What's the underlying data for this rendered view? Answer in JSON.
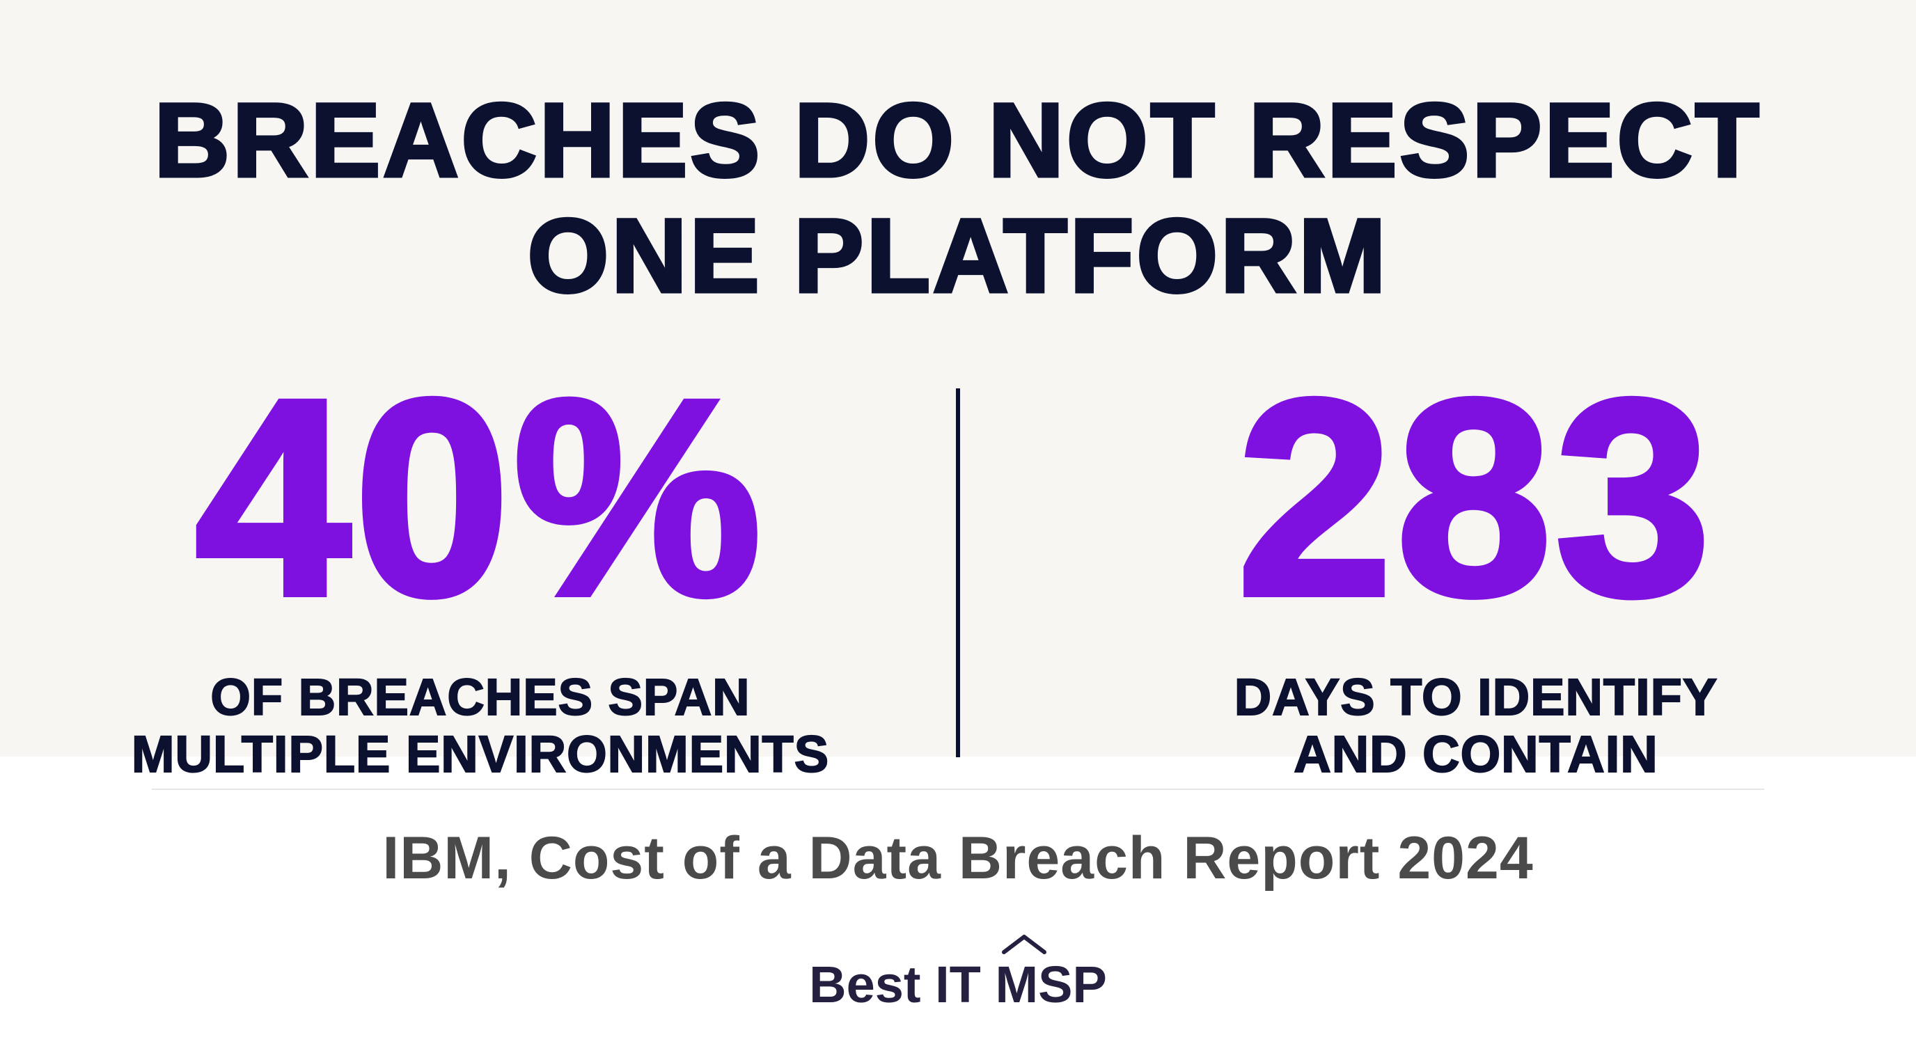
{
  "headline": {
    "line1": "BREACHES DO NOT RESPECT",
    "line2": "ONE PLATFORM"
  },
  "stats": [
    {
      "value": "40%",
      "caption_line1": "OF BREACHES SPAN",
      "caption_line2": "MULTIPLE ENVIRONMENTS"
    },
    {
      "value": "283",
      "caption_line1": "DAYS TO IDENTIFY",
      "caption_line2": "AND CONTAIN"
    }
  ],
  "source": "IBM, Cost of a Data Breach Report 2024",
  "logo": {
    "text": "Best IT MSP",
    "icon": "roof-chevron-icon"
  },
  "colors": {
    "background": "#f7f6f2",
    "accent_purple": "#7e10e0",
    "navy": "#0c1130",
    "source_gray": "#4a4a4a"
  }
}
